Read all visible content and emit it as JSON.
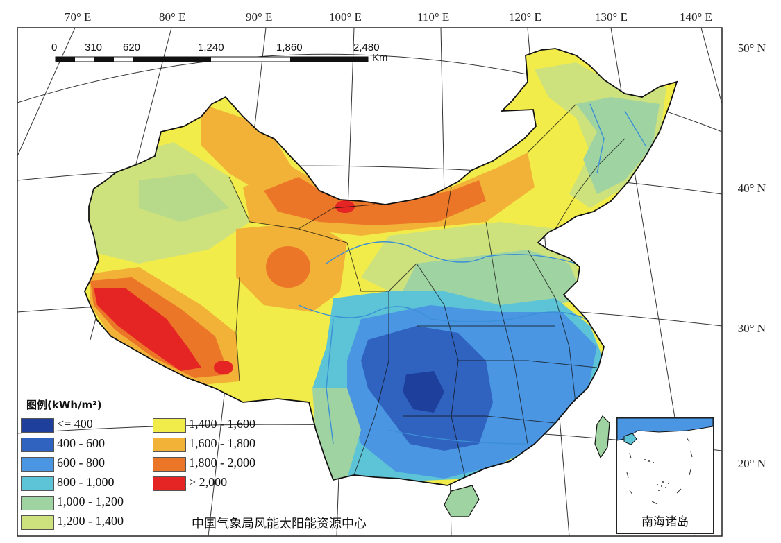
{
  "map": {
    "lon_labels": [
      "70° E",
      "80° E",
      "90° E",
      "100° E",
      "110° E",
      "120° E",
      "130° E",
      "140° E"
    ],
    "lat_labels": [
      "50° N",
      "40° N",
      "30° N",
      "20° N"
    ],
    "scale_bar": {
      "ticks": [
        "0",
        "310",
        "620",
        "1,240",
        "1,860",
        "2,480"
      ],
      "unit": "Km"
    },
    "legend": {
      "title": "图例(kWh/m²)",
      "items": [
        {
          "label": "<= 400",
          "color": "#1e3f9c"
        },
        {
          "label": "400 - 600",
          "color": "#2f63bf"
        },
        {
          "label": "600 - 800",
          "color": "#4a96e2"
        },
        {
          "label": "800 - 1,000",
          "color": "#5cc4d6"
        },
        {
          "label": "1,000 - 1,200",
          "color": "#9fd3a2"
        },
        {
          "label": "1,200 - 1,400",
          "color": "#cde27d"
        },
        {
          "label": "1,400 - 1,600",
          "color": "#f2ec4a"
        },
        {
          "label": "1,600 - 1,800",
          "color": "#f2b237"
        },
        {
          "label": "1,800 - 2,000",
          "color": "#ec7628"
        },
        {
          "label": "> 2,000",
          "color": "#e52424"
        }
      ]
    },
    "source": "中国气象局风能太阳能资源中心",
    "inset_label": "南海诸岛",
    "colors": {
      "graticule": "#333333",
      "river": "#3b8fd6",
      "border": "#111111"
    }
  }
}
